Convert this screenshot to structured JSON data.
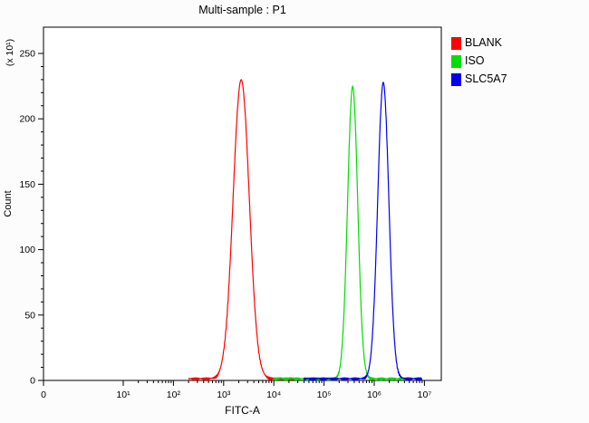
{
  "title": "Multi-sample : P1",
  "axes": {
    "x_label": "FITC-A",
    "y_label": "Count",
    "y_scale_note": "(x 10¹)",
    "x_tick_labels": [
      "0",
      "10¹",
      "10²",
      "10³",
      "10⁴",
      "10⁵",
      "10⁶",
      "10⁷"
    ],
    "y_tick_labels": [
      "0",
      "50",
      "100",
      "150",
      "200",
      "250"
    ]
  },
  "legend": {
    "items": [
      {
        "label": "BLANK",
        "color": "#ff0000"
      },
      {
        "label": "ISO",
        "color": "#00dd00"
      },
      {
        "label": "SLC5A7",
        "color": "#0000ee"
      }
    ]
  },
  "chart_data": {
    "type": "line",
    "subtype": "flow-cytometry-histogram",
    "title": "Multi-sample : P1",
    "xlabel": "FITC-A",
    "ylabel": "Count",
    "y_unit_multiplier": "(x 10¹)",
    "x_scale": "log10",
    "x_ticks_log10": [
      0,
      1,
      2,
      3,
      4,
      5,
      6,
      7
    ],
    "ylim": [
      0,
      260
    ],
    "y_major_ticks": [
      0,
      50,
      100,
      150,
      200,
      250
    ],
    "legend_position": "top-right",
    "grid": false,
    "series": [
      {
        "name": "BLANK",
        "color": "#ff0000",
        "peak_center_log10": 3.35,
        "peak_center_value": 2200,
        "peak_height": 230,
        "sigma_decades": 0.16,
        "domain_log10": [
          2.3,
          4.4
        ],
        "seed": 1
      },
      {
        "name": "ISO",
        "color": "#00dd00",
        "peak_center_log10": 5.57,
        "peak_center_value": 370000,
        "peak_height": 225,
        "sigma_decades": 0.1,
        "domain_log10": [
          4.0,
          6.6
        ],
        "seed": 2
      },
      {
        "name": "SLC5A7",
        "color": "#0000ee",
        "peak_center_log10": 6.18,
        "peak_center_value": 1500000,
        "peak_height": 228,
        "sigma_decades": 0.11,
        "domain_log10": [
          4.6,
          6.95
        ],
        "seed": 3
      }
    ]
  }
}
